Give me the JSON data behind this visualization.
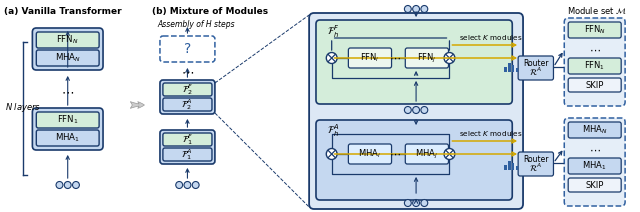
{
  "title_a": "(a) Vanilla Transformer",
  "title_b": "(b) Mixture of Modules",
  "subtitle_b": "Assembly of H steps",
  "module_set_label": "Module set $\\mathcal{M}$",
  "n_layers_label": "N layers",
  "bg_color": "#ffffff",
  "dark_blue": "#1a3a6b",
  "med_blue": "#3060a0",
  "light_blue": "#c5d8f0",
  "light_green": "#d4edda",
  "yellow_line": "#d4a800",
  "outer_bg": "#dde8f5"
}
